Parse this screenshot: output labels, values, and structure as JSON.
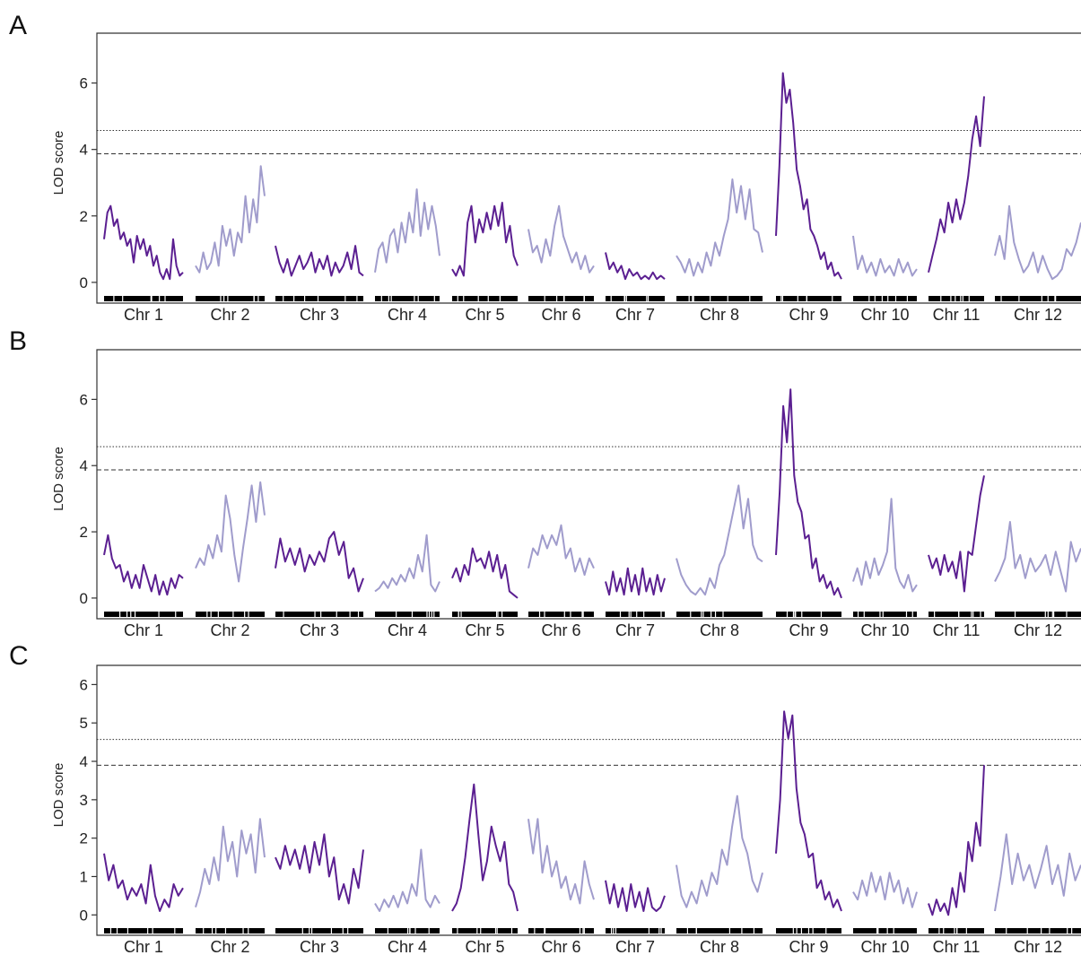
{
  "colors": {
    "dark": "#5b1f91",
    "light": "#a09ccc",
    "axis": "#333333",
    "rug": "#000000"
  },
  "chart_data": [
    {
      "type": "line",
      "panel": "A",
      "ylabel": "LOD score",
      "ylim": [
        -0.3,
        7.5
      ],
      "yticks": [
        0,
        2,
        4,
        6
      ],
      "thresholds": [
        {
          "style": "dotted",
          "value": 4.57
        },
        {
          "style": "dashed",
          "value": 3.87
        }
      ],
      "chromosomes": [
        {
          "label": "Chr 1",
          "pts": [
            1.3,
            2.1,
            2.3,
            1.7,
            1.9,
            1.3,
            1.5,
            1.1,
            1.3,
            0.6,
            1.4,
            1.0,
            1.3,
            0.8,
            1.1,
            0.5,
            0.8,
            0.3,
            0.1,
            0.4,
            0.1,
            1.3,
            0.5,
            0.2,
            0.3
          ]
        },
        {
          "label": "Chr 2",
          "pts": [
            0.5,
            0.3,
            0.9,
            0.4,
            0.6,
            1.2,
            0.5,
            1.7,
            1.1,
            1.6,
            0.8,
            1.5,
            1.2,
            2.6,
            1.5,
            2.5,
            1.8,
            3.5,
            2.6
          ]
        },
        {
          "label": "Chr 3",
          "pts": [
            1.1,
            0.6,
            0.3,
            0.7,
            0.2,
            0.5,
            0.8,
            0.4,
            0.6,
            0.9,
            0.3,
            0.7,
            0.4,
            0.8,
            0.2,
            0.6,
            0.3,
            0.5,
            0.9,
            0.4,
            1.1,
            0.3,
            0.2
          ]
        },
        {
          "label": "Chr 4",
          "pts": [
            0.3,
            1.0,
            1.2,
            0.6,
            1.4,
            1.6,
            0.9,
            1.8,
            1.2,
            2.1,
            1.5,
            2.8,
            1.4,
            2.4,
            1.6,
            2.3,
            1.7,
            0.8
          ]
        },
        {
          "label": "Chr 5",
          "pts": [
            0.4,
            0.2,
            0.5,
            0.2,
            1.8,
            2.3,
            1.2,
            1.9,
            1.5,
            2.1,
            1.6,
            2.3,
            1.7,
            2.4,
            1.2,
            1.7,
            0.8,
            0.5
          ]
        },
        {
          "label": "Chr 6",
          "pts": [
            1.6,
            0.9,
            1.1,
            0.6,
            1.3,
            0.8,
            1.7,
            2.3,
            1.4,
            1.0,
            0.6,
            0.9,
            0.4,
            0.8,
            0.3,
            0.5
          ]
        },
        {
          "label": "Chr 7",
          "pts": [
            0.9,
            0.4,
            0.6,
            0.3,
            0.5,
            0.1,
            0.4,
            0.2,
            0.3,
            0.1,
            0.2,
            0.1,
            0.3,
            0.1,
            0.2,
            0.1
          ]
        },
        {
          "label": "Chr 8",
          "pts": [
            0.8,
            0.6,
            0.3,
            0.7,
            0.2,
            0.6,
            0.3,
            0.9,
            0.5,
            1.2,
            0.8,
            1.4,
            1.9,
            3.1,
            2.1,
            2.9,
            1.9,
            2.8,
            1.6,
            1.5,
            0.9
          ]
        },
        {
          "label": "Chr 9",
          "pts": [
            1.4,
            3.5,
            6.3,
            5.4,
            5.8,
            4.8,
            3.4,
            2.9,
            2.2,
            2.5,
            1.6,
            1.4,
            1.1,
            0.7,
            0.9,
            0.4,
            0.6,
            0.2,
            0.3,
            0.1
          ]
        },
        {
          "label": "Chr 10",
          "pts": [
            1.4,
            0.4,
            0.8,
            0.3,
            0.6,
            0.2,
            0.7,
            0.3,
            0.5,
            0.2,
            0.7,
            0.3,
            0.6,
            0.2,
            0.4
          ]
        },
        {
          "label": "Chr 11",
          "pts": [
            0.3,
            0.8,
            1.3,
            1.9,
            1.5,
            2.4,
            1.8,
            2.5,
            1.9,
            2.4,
            3.2,
            4.3,
            5.0,
            4.1,
            5.6
          ]
        },
        {
          "label": "Chr 12",
          "pts": [
            0.8,
            1.4,
            0.7,
            2.3,
            1.2,
            0.7,
            0.3,
            0.5,
            0.9,
            0.3,
            0.8,
            0.4,
            0.1,
            0.2,
            0.4,
            1.0,
            0.8,
            1.2,
            1.8
          ]
        }
      ]
    },
    {
      "type": "line",
      "panel": "B",
      "ylabel": "LOD score",
      "ylim": [
        -0.3,
        7.5
      ],
      "yticks": [
        0,
        2,
        4,
        6
      ],
      "thresholds": [
        {
          "style": "dotted",
          "value": 4.57
        },
        {
          "style": "dashed",
          "value": 3.87
        }
      ],
      "chromosomes": [
        {
          "label": "Chr 1",
          "pts": [
            1.3,
            1.9,
            1.2,
            0.9,
            1.0,
            0.5,
            0.8,
            0.3,
            0.7,
            0.3,
            1.0,
            0.6,
            0.2,
            0.7,
            0.1,
            0.5,
            0.1,
            0.6,
            0.3,
            0.7,
            0.6
          ]
        },
        {
          "label": "Chr 2",
          "pts": [
            0.9,
            1.2,
            1.0,
            1.6,
            1.2,
            1.9,
            1.4,
            3.1,
            2.4,
            1.3,
            0.5,
            1.5,
            2.4,
            3.4,
            2.3,
            3.5,
            2.5
          ]
        },
        {
          "label": "Chr 3",
          "pts": [
            0.9,
            1.8,
            1.1,
            1.5,
            1.0,
            1.5,
            0.8,
            1.3,
            1.0,
            1.4,
            1.1,
            1.8,
            2.0,
            1.3,
            1.7,
            0.6,
            0.9,
            0.2,
            0.6
          ]
        },
        {
          "label": "Chr 4",
          "pts": [
            0.2,
            0.3,
            0.5,
            0.3,
            0.6,
            0.4,
            0.7,
            0.5,
            0.9,
            0.6,
            1.3,
            0.8,
            1.9,
            0.4,
            0.2,
            0.5
          ]
        },
        {
          "label": "Chr 5",
          "pts": [
            0.6,
            0.9,
            0.5,
            1.0,
            0.7,
            1.5,
            1.1,
            1.2,
            0.9,
            1.4,
            0.8,
            1.3,
            0.6,
            1.0,
            0.2,
            0.1,
            0.0
          ]
        },
        {
          "label": "Chr 6",
          "pts": [
            0.9,
            1.5,
            1.3,
            1.9,
            1.5,
            1.9,
            1.6,
            2.2,
            1.2,
            1.5,
            0.8,
            1.2,
            0.7,
            1.2,
            0.9
          ]
        },
        {
          "label": "Chr 7",
          "pts": [
            0.5,
            0.1,
            0.8,
            0.2,
            0.6,
            0.1,
            0.9,
            0.2,
            0.7,
            0.1,
            0.9,
            0.2,
            0.6,
            0.1,
            0.7,
            0.2,
            0.6
          ]
        },
        {
          "label": "Chr 8",
          "pts": [
            1.2,
            0.7,
            0.4,
            0.2,
            0.1,
            0.3,
            0.1,
            0.6,
            0.3,
            1.0,
            1.3,
            2.0,
            2.7,
            3.4,
            2.1,
            3.0,
            1.6,
            1.2,
            1.1
          ]
        },
        {
          "label": "Chr 9",
          "pts": [
            1.3,
            3.2,
            5.8,
            4.7,
            6.3,
            3.7,
            2.9,
            2.6,
            1.8,
            1.9,
            0.9,
            1.2,
            0.5,
            0.7,
            0.3,
            0.5,
            0.1,
            0.3,
            0.0
          ]
        },
        {
          "label": "Chr 10",
          "pts": [
            0.5,
            0.9,
            0.4,
            1.1,
            0.6,
            1.2,
            0.7,
            1.0,
            1.4,
            3.0,
            0.9,
            0.5,
            0.3,
            0.7,
            0.2,
            0.4
          ]
        },
        {
          "label": "Chr 11",
          "pts": [
            1.3,
            0.9,
            1.2,
            0.7,
            1.3,
            0.8,
            1.1,
            0.6,
            1.4,
            0.2,
            1.4,
            1.3,
            2.2,
            3.1,
            3.7
          ]
        },
        {
          "label": "Chr 12",
          "pts": [
            0.5,
            0.8,
            1.2,
            2.3,
            0.9,
            1.3,
            0.6,
            1.2,
            0.8,
            1.0,
            1.3,
            0.7,
            1.4,
            0.8,
            0.2,
            1.7,
            1.1,
            1.5
          ]
        }
      ]
    },
    {
      "type": "line",
      "panel": "C",
      "ylabel": "LOD score",
      "ylim": [
        -0.25,
        6.5
      ],
      "yticks": [
        0,
        1,
        2,
        3,
        4,
        5,
        6
      ],
      "thresholds": [
        {
          "style": "dotted",
          "value": 4.57
        },
        {
          "style": "dashed",
          "value": 3.9
        }
      ],
      "chromosomes": [
        {
          "label": "Chr 1",
          "pts": [
            1.6,
            0.9,
            1.3,
            0.7,
            0.9,
            0.4,
            0.7,
            0.5,
            0.8,
            0.3,
            1.3,
            0.5,
            0.1,
            0.4,
            0.2,
            0.8,
            0.5,
            0.7
          ]
        },
        {
          "label": "Chr 2",
          "pts": [
            0.2,
            0.6,
            1.2,
            0.8,
            1.5,
            0.9,
            2.3,
            1.4,
            1.9,
            1.0,
            2.2,
            1.6,
            2.1,
            1.1,
            2.5,
            1.5
          ]
        },
        {
          "label": "Chr 3",
          "pts": [
            1.5,
            1.2,
            1.8,
            1.3,
            1.7,
            1.2,
            1.8,
            1.1,
            1.9,
            1.3,
            2.1,
            1.0,
            1.5,
            0.4,
            0.8,
            0.3,
            1.2,
            0.7,
            1.7
          ]
        },
        {
          "label": "Chr 4",
          "pts": [
            0.3,
            0.1,
            0.4,
            0.2,
            0.5,
            0.2,
            0.6,
            0.3,
            0.8,
            0.5,
            1.7,
            0.4,
            0.2,
            0.5,
            0.3
          ]
        },
        {
          "label": "Chr 5",
          "pts": [
            0.1,
            0.3,
            0.7,
            1.5,
            2.5,
            3.4,
            2.1,
            0.9,
            1.4,
            2.3,
            1.8,
            1.4,
            1.9,
            0.8,
            0.6,
            0.1
          ]
        },
        {
          "label": "Chr 6",
          "pts": [
            2.5,
            1.6,
            2.5,
            1.1,
            1.8,
            1.0,
            1.4,
            0.7,
            1.0,
            0.4,
            0.8,
            0.3,
            1.4,
            0.8,
            0.4
          ]
        },
        {
          "label": "Chr 7",
          "pts": [
            0.9,
            0.3,
            0.8,
            0.2,
            0.7,
            0.1,
            0.8,
            0.2,
            0.6,
            0.1,
            0.7,
            0.2,
            0.1,
            0.2,
            0.5
          ]
        },
        {
          "label": "Chr 8",
          "pts": [
            1.3,
            0.5,
            0.2,
            0.6,
            0.3,
            0.9,
            0.5,
            1.1,
            0.8,
            1.7,
            1.3,
            2.3,
            3.1,
            2.0,
            1.6,
            0.9,
            0.6,
            1.1
          ]
        },
        {
          "label": "Chr 9",
          "pts": [
            1.6,
            3.0,
            5.3,
            4.6,
            5.2,
            3.3,
            2.4,
            2.1,
            1.5,
            1.6,
            0.7,
            0.9,
            0.4,
            0.6,
            0.2,
            0.4,
            0.1
          ]
        },
        {
          "label": "Chr 10",
          "pts": [
            0.6,
            0.4,
            0.9,
            0.5,
            1.1,
            0.6,
            1.0,
            0.4,
            1.1,
            0.6,
            0.9,
            0.3,
            0.7,
            0.2,
            0.6
          ]
        },
        {
          "label": "Chr 11",
          "pts": [
            0.3,
            0.0,
            0.4,
            0.1,
            0.3,
            0.0,
            0.7,
            0.2,
            1.1,
            0.6,
            1.9,
            1.4,
            2.4,
            1.8,
            3.9
          ]
        },
        {
          "label": "Chr 12",
          "pts": [
            0.1,
            1.0,
            2.1,
            0.8,
            1.6,
            0.9,
            1.3,
            0.7,
            1.2,
            1.8,
            0.8,
            1.3,
            0.5,
            1.6,
            0.9,
            1.3
          ]
        }
      ]
    }
  ]
}
